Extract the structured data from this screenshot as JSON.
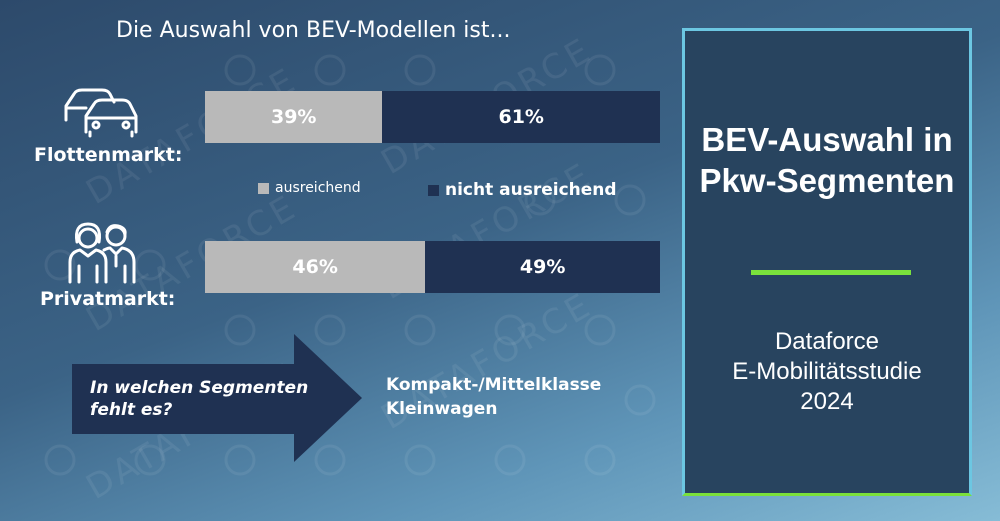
{
  "page": {
    "title": "Die Auswahl von BEV-Modellen ist...",
    "watermark_text": "DATAFORCE"
  },
  "icons": {
    "fleet": "cars-icon",
    "private": "people-icon",
    "arrow": "right-arrow-icon"
  },
  "colors": {
    "sufficient": "#b9b9b9",
    "insufficient": "#1f3152",
    "accent_line": "#7ae23c",
    "card_border": "#6cc7e2",
    "card_background": "#28445f"
  },
  "chart_data": {
    "type": "bar",
    "stacked": true,
    "orientation": "horizontal",
    "title": "Die Auswahl von BEV-Modellen ist...",
    "categories": [
      "Flottenmarkt:",
      "Privatmarkt:"
    ],
    "series": [
      {
        "name": "ausreichend",
        "values": [
          39,
          46
        ],
        "labels": [
          "39%",
          "46%"
        ],
        "color": "#b9b9b9"
      },
      {
        "name": "nicht ausreichend",
        "values": [
          61,
          49
        ],
        "labels": [
          "61%",
          "49%"
        ],
        "color": "#1f3152"
      }
    ],
    "legend_position": "between bars",
    "grid": false
  },
  "legend": {
    "items": [
      "ausreichend",
      "nicht ausreichend"
    ]
  },
  "callout": {
    "question_line1": "In welchen Segmenten",
    "question_line2": "fehlt es?",
    "answer_line1": "Kompakt-/Mittelklasse",
    "answer_line2": "Kleinwagen"
  },
  "card": {
    "title_line1": "BEV-Auswahl in",
    "title_line2": "Pkw-Segmenten",
    "sub_line1": "Dataforce",
    "sub_line2": "E-Mobilitätsstudie",
    "sub_line3": "2024"
  }
}
